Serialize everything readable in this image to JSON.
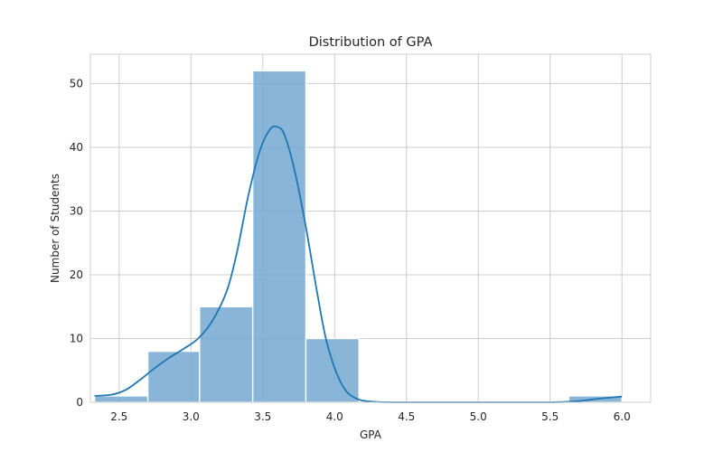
{
  "chart_data": {
    "type": "bar",
    "title": "Distribution of GPA",
    "xlabel": "GPA",
    "ylabel": "Number of Students",
    "xlim": [
      2.3,
      6.2
    ],
    "ylim": [
      0,
      54.6
    ],
    "grid": true,
    "bar_color": "#6fa6d0",
    "line_color": "#1f77b4",
    "bins": [
      {
        "x0": 2.33,
        "x1": 2.7,
        "count": 1
      },
      {
        "x0": 2.7,
        "x1": 3.06,
        "count": 8
      },
      {
        "x0": 3.06,
        "x1": 3.43,
        "count": 15
      },
      {
        "x0": 3.43,
        "x1": 3.8,
        "count": 52
      },
      {
        "x0": 3.8,
        "x1": 4.17,
        "count": 10
      },
      {
        "x0": 4.17,
        "x1": 4.53,
        "count": 0
      },
      {
        "x0": 4.53,
        "x1": 4.9,
        "count": 0
      },
      {
        "x0": 4.9,
        "x1": 5.27,
        "count": 0
      },
      {
        "x0": 5.27,
        "x1": 5.63,
        "count": 0
      },
      {
        "x0": 5.63,
        "x1": 6.0,
        "count": 1
      }
    ],
    "xticks": [
      {
        "value": 2.5,
        "label": "2.5"
      },
      {
        "value": 3.0,
        "label": "3.0"
      },
      {
        "value": 3.5,
        "label": "3.5"
      },
      {
        "value": 4.0,
        "label": "4.0"
      },
      {
        "value": 4.5,
        "label": "4.5"
      },
      {
        "value": 5.0,
        "label": "5.0"
      },
      {
        "value": 5.5,
        "label": "5.5"
      },
      {
        "value": 6.0,
        "label": "6.0"
      }
    ],
    "yticks": [
      {
        "value": 0,
        "label": "0"
      },
      {
        "value": 10,
        "label": "10"
      },
      {
        "value": 20,
        "label": "20"
      },
      {
        "value": 30,
        "label": "30"
      },
      {
        "value": 40,
        "label": "40"
      },
      {
        "value": 50,
        "label": "50"
      }
    ],
    "kde": {
      "x": [
        2.33,
        2.45,
        2.55,
        2.65,
        2.75,
        2.85,
        2.95,
        3.05,
        3.15,
        3.25,
        3.32,
        3.4,
        3.48,
        3.55,
        3.6,
        3.65,
        3.72,
        3.8,
        3.88,
        3.95,
        4.05,
        4.15,
        4.3,
        4.5,
        5.0,
        5.5,
        5.7,
        5.85,
        6.0
      ],
      "y": [
        1.0,
        1.2,
        2.0,
        3.6,
        5.4,
        7.0,
        8.4,
        10.0,
        12.8,
        17.5,
        23.5,
        32.5,
        39.5,
        42.8,
        43.2,
        42.0,
        36.5,
        27.5,
        17.0,
        9.0,
        2.8,
        0.6,
        0.05,
        0.0,
        0.0,
        0.0,
        0.2,
        0.6,
        0.9
      ]
    }
  }
}
